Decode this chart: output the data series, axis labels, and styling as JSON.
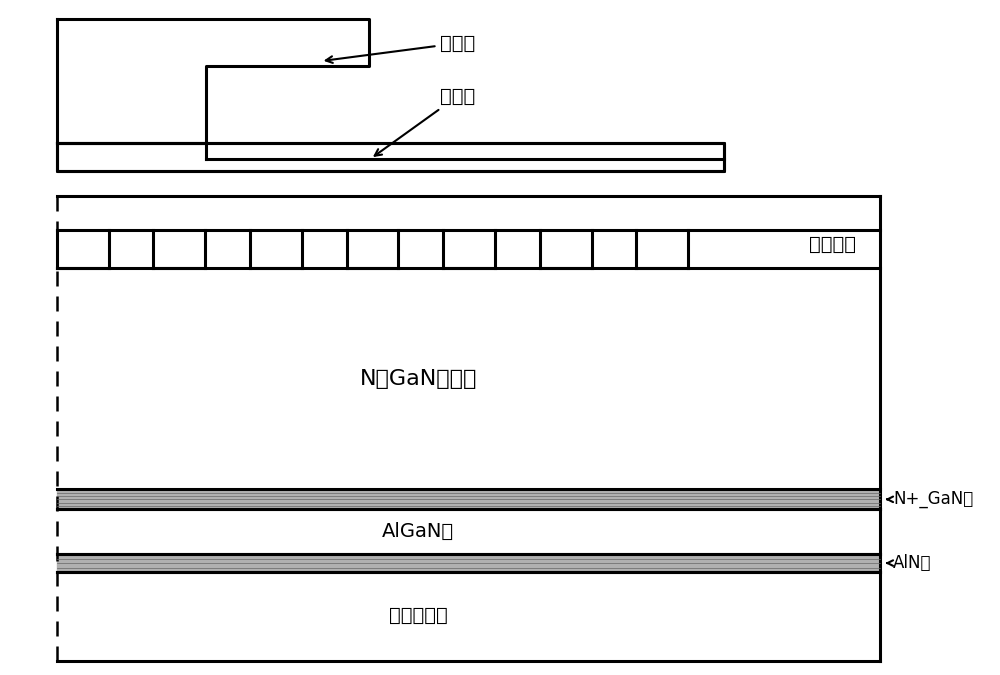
{
  "bg_color": "#ffffff",
  "line_color": "#000000",
  "figure_width": 10.0,
  "figure_height": 6.75,
  "dpi": 100,
  "labels": {
    "metal_al": "金属铝",
    "metal_ti": "金属钓",
    "interlayer": "层间介质",
    "ngan": "N型GaN外延层",
    "nplus_gan": "N+_GaN层",
    "algan": "AlGaN层",
    "aln": "AlN层",
    "silicon": "硅单晶衬底"
  },
  "font_size": 14,
  "lw_main": 1.8,
  "lw_thick": 2.2
}
